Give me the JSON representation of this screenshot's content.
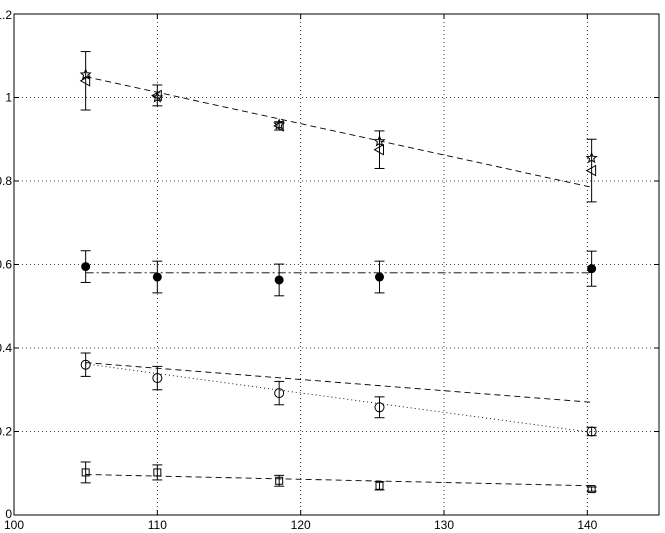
{
  "chart_data": {
    "type": "scatter",
    "title": "",
    "xlabel": "",
    "ylabel": "",
    "xlim": [
      100,
      145
    ],
    "ylim": [
      0,
      1.2
    ],
    "grid": true,
    "x_ticks": [
      100,
      110,
      120,
      130,
      140
    ],
    "y_ticks": [
      0,
      0.2,
      0.4,
      0.6,
      0.8,
      1,
      1.2
    ],
    "x_tick_labels": [
      "100",
      "110",
      "120",
      "130",
      "140"
    ],
    "y_tick_labels": [
      "0",
      "0.2",
      "0.4",
      "0.6",
      "0.8",
      "1",
      "1.2"
    ],
    "series": [
      {
        "marker": "star",
        "points": [
          {
            "x": 105,
            "y": 1.055
          },
          {
            "x": 110,
            "y": 1.0
          },
          {
            "x": 118.5,
            "y": 0.935
          },
          {
            "x": 125.5,
            "y": 0.895
          },
          {
            "x": 140.3,
            "y": 0.855
          }
        ]
      },
      {
        "marker": "triangle-left",
        "points": [
          {
            "x": 105,
            "y": 1.04,
            "err": 0.07
          },
          {
            "x": 110,
            "y": 1.005,
            "err": 0.025
          },
          {
            "x": 118.5,
            "y": 0.932,
            "err": 0.01
          },
          {
            "x": 125.5,
            "y": 0.875,
            "err": 0.045
          },
          {
            "x": 140.3,
            "y": 0.825,
            "err": 0.075
          }
        ]
      },
      {
        "marker": "filled-circle",
        "points": [
          {
            "x": 105,
            "y": 0.595,
            "err": 0.038
          },
          {
            "x": 110,
            "y": 0.57,
            "err": 0.038
          },
          {
            "x": 118.5,
            "y": 0.563,
            "err": 0.038
          },
          {
            "x": 125.5,
            "y": 0.57,
            "err": 0.038
          },
          {
            "x": 140.3,
            "y": 0.59,
            "err": 0.042
          }
        ]
      },
      {
        "marker": "circle",
        "points": [
          {
            "x": 105,
            "y": 0.36,
            "err": 0.028
          },
          {
            "x": 110,
            "y": 0.328,
            "err": 0.028
          },
          {
            "x": 118.5,
            "y": 0.292,
            "err": 0.028
          },
          {
            "x": 125.5,
            "y": 0.258,
            "err": 0.025
          },
          {
            "x": 140.3,
            "y": 0.2,
            "err": 0.01
          }
        ]
      },
      {
        "marker": "square",
        "points": [
          {
            "x": 105,
            "y": 0.102,
            "err": 0.025
          },
          {
            "x": 110,
            "y": 0.102,
            "err": 0.018
          },
          {
            "x": 118.5,
            "y": 0.082,
            "err": 0.013
          },
          {
            "x": 125.5,
            "y": 0.07,
            "err": 0.01
          },
          {
            "x": 140.3,
            "y": 0.062,
            "err": 0.005
          }
        ]
      }
    ],
    "fit_lines": [
      {
        "style": "dashed",
        "x": [
          105,
          140.3
        ],
        "y": [
          1.05,
          0.785
        ]
      },
      {
        "style": "dashdot",
        "x": [
          105,
          140.3
        ],
        "y": [
          0.58,
          0.58
        ]
      },
      {
        "style": "dashed",
        "x": [
          105,
          140.3
        ],
        "y": [
          0.365,
          0.27
        ]
      },
      {
        "style": "dotted",
        "x": [
          105,
          140.3
        ],
        "y": [
          0.362,
          0.198
        ]
      },
      {
        "style": "dashed",
        "x": [
          105,
          140.3
        ],
        "y": [
          0.097,
          0.07
        ]
      }
    ]
  }
}
